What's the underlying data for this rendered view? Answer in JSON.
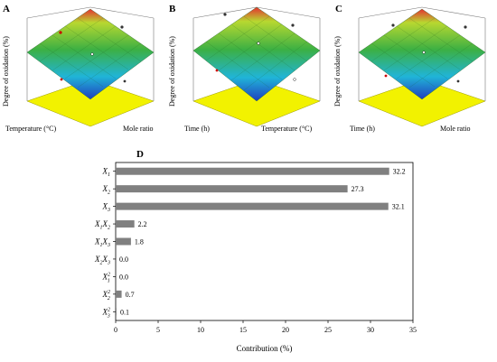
{
  "panels": [
    {
      "letter": "A",
      "xlabel": "Temperature (°C)",
      "ylabel": "Mole ratio",
      "zlabel": "Degree of oxidation (%)"
    },
    {
      "letter": "B",
      "xlabel": "Time (h)",
      "ylabel": "Temperature (°C)",
      "zlabel": "Degree of oxidation (%)"
    },
    {
      "letter": "C",
      "xlabel": "Time (h)",
      "ylabel": "Mole ratio",
      "zlabel": "Degree of oxidation (%)"
    }
  ],
  "panel_d_letter": "D",
  "colors": {
    "bar": "#808080",
    "surface_high": "#d32f2f",
    "surface_mid": "#3cb043",
    "surface_low": "#1f3fbf",
    "floor": "#f2f200"
  },
  "chart_data": [
    {
      "type": "bar",
      "orientation": "horizontal",
      "title": "",
      "categories": [
        "X1",
        "X2",
        "X3",
        "X1X2",
        "X1X3",
        "X2X3",
        "X1^2",
        "X2^2",
        "X3^2"
      ],
      "category_labels": [
        {
          "base": "X",
          "sub": "1",
          "sup": "",
          "base2": "",
          "sub2": ""
        },
        {
          "base": "X",
          "sub": "2",
          "sup": "",
          "base2": "",
          "sub2": ""
        },
        {
          "base": "X",
          "sub": "3",
          "sup": "",
          "base2": "",
          "sub2": ""
        },
        {
          "base": "X",
          "sub": "1",
          "sup": "",
          "base2": "X",
          "sub2": "2"
        },
        {
          "base": "X",
          "sub": "1",
          "sup": "",
          "base2": "X",
          "sub2": "3"
        },
        {
          "base": "X",
          "sub": "2",
          "sup": "",
          "base2": "X",
          "sub2": "3"
        },
        {
          "base": "X",
          "sub": "1",
          "sup": "2",
          "base2": "",
          "sub2": ""
        },
        {
          "base": "X",
          "sub": "2",
          "sup": "2",
          "base2": "",
          "sub2": ""
        },
        {
          "base": "X",
          "sub": "3",
          "sup": "2",
          "base2": "",
          "sub2": ""
        }
      ],
      "values": [
        32.2,
        27.3,
        32.1,
        2.2,
        1.8,
        0.0,
        0.0,
        0.7,
        0.1
      ],
      "value_labels": [
        "32.2",
        "27.3",
        "32.1",
        "2.2",
        "1.8",
        "0.0",
        "0.0",
        "0.7",
        "0.1"
      ],
      "xlabel": "Contribution (%)",
      "xlim": [
        0,
        35
      ],
      "xticks": [
        "0",
        "5",
        "10",
        "15",
        "20",
        "25",
        "30",
        "35"
      ],
      "grid": false
    }
  ]
}
